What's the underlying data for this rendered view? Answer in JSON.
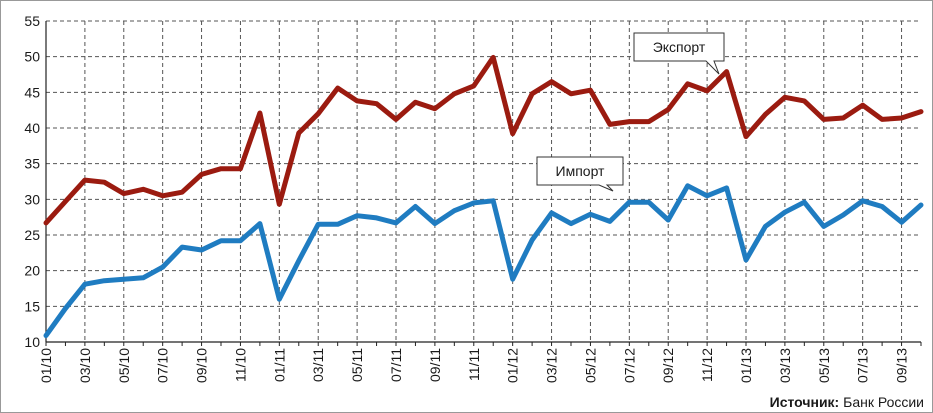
{
  "source": {
    "label": "Источник:",
    "text": "Банк России"
  },
  "colors": {
    "export": "#9b1b10",
    "import": "#1f7cc1",
    "grid": "#555555",
    "axis": "#222222"
  },
  "chart_data": {
    "type": "line",
    "title": "",
    "xlabel": "",
    "ylabel": "",
    "ylim": [
      10,
      55
    ],
    "yticks": [
      10,
      15,
      20,
      25,
      30,
      35,
      40,
      45,
      50,
      55
    ],
    "grid": true,
    "legend": "callouts",
    "x": [
      "01/10",
      "02/10",
      "03/10",
      "04/10",
      "05/10",
      "06/10",
      "07/10",
      "08/10",
      "09/10",
      "10/10",
      "11/10",
      "12/10",
      "01/11",
      "02/11",
      "03/11",
      "04/11",
      "05/11",
      "06/11",
      "07/11",
      "08/11",
      "09/11",
      "10/11",
      "11/11",
      "12/11",
      "01/12",
      "02/12",
      "03/12",
      "04/12",
      "05/12",
      "06/12",
      "07/12",
      "08/12",
      "09/12",
      "10/12",
      "11/12",
      "12/12",
      "01/13",
      "02/13",
      "03/13",
      "04/13",
      "05/13",
      "06/13",
      "07/13",
      "08/13",
      "09/13",
      "10/13"
    ],
    "x_tick_labels": [
      "01/10",
      "03/10",
      "05/10",
      "07/10",
      "09/10",
      "11/10",
      "01/11",
      "03/11",
      "05/11",
      "07/11",
      "09/11",
      "11/11",
      "01/12",
      "03/12",
      "05/12",
      "07/12",
      "09/12",
      "11/12",
      "01/13",
      "03/13",
      "05/13",
      "07/13",
      "09/13"
    ],
    "series": [
      {
        "name": "Экспорт",
        "values": [
          26.7,
          29.7,
          32.7,
          32.4,
          30.8,
          31.4,
          30.5,
          31.0,
          33.5,
          34.3,
          34.3,
          42.1,
          29.3,
          39.3,
          42.0,
          45.6,
          43.8,
          43.4,
          41.2,
          43.6,
          42.7,
          44.8,
          45.9,
          49.9,
          39.2,
          44.8,
          46.5,
          44.8,
          45.3,
          40.5,
          40.9,
          40.9,
          42.6,
          46.2,
          45.2,
          47.9,
          38.8,
          41.9,
          44.3,
          43.8,
          41.2,
          41.4,
          43.2,
          41.2,
          41.4,
          42.3
        ]
      },
      {
        "name": "Импорт",
        "values": [
          10.9,
          14.7,
          18.1,
          18.6,
          18.8,
          19.0,
          20.5,
          23.3,
          22.9,
          24.2,
          24.2,
          26.6,
          16.0,
          21.4,
          26.5,
          26.5,
          27.7,
          27.4,
          26.7,
          29.0,
          26.6,
          28.4,
          29.5,
          29.8,
          18.8,
          24.3,
          28.1,
          26.6,
          27.9,
          26.9,
          29.6,
          29.6,
          27.1,
          31.9,
          30.5,
          31.6,
          21.5,
          26.2,
          28.2,
          29.6,
          26.2,
          27.8,
          29.8,
          29.0,
          26.8,
          29.2
        ]
      }
    ]
  }
}
